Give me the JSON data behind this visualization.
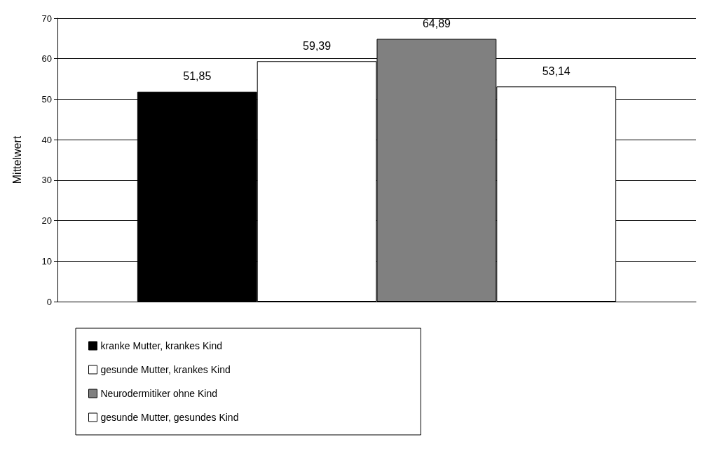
{
  "chart_data": {
    "type": "bar",
    "ylabel": "Mittelwert",
    "categories": [
      null
    ],
    "series": [
      {
        "name": "kranke Mutter, krankes Kind",
        "color": "#000000",
        "values": [
          51.85
        ],
        "value_labels": [
          "51,85"
        ]
      },
      {
        "name": "gesunde Mutter, krankes Kind",
        "color": "#ffffff",
        "values": [
          59.39
        ],
        "value_labels": [
          "59,39"
        ]
      },
      {
        "name": "Neurodermitiker ohne Kind",
        "color": "#808080",
        "values": [
          64.89
        ],
        "value_labels": [
          "64,89"
        ]
      },
      {
        "name": "gesunde Mutter, gesundes Kind",
        "color": "#ffffff",
        "values": [
          53.14
        ],
        "value_labels": [
          "53,14"
        ]
      }
    ],
    "ylim": [
      0,
      70
    ],
    "yticks": [
      0,
      10,
      20,
      30,
      40,
      50,
      60,
      70
    ],
    "grid": "y",
    "legend": "bottom left"
  }
}
